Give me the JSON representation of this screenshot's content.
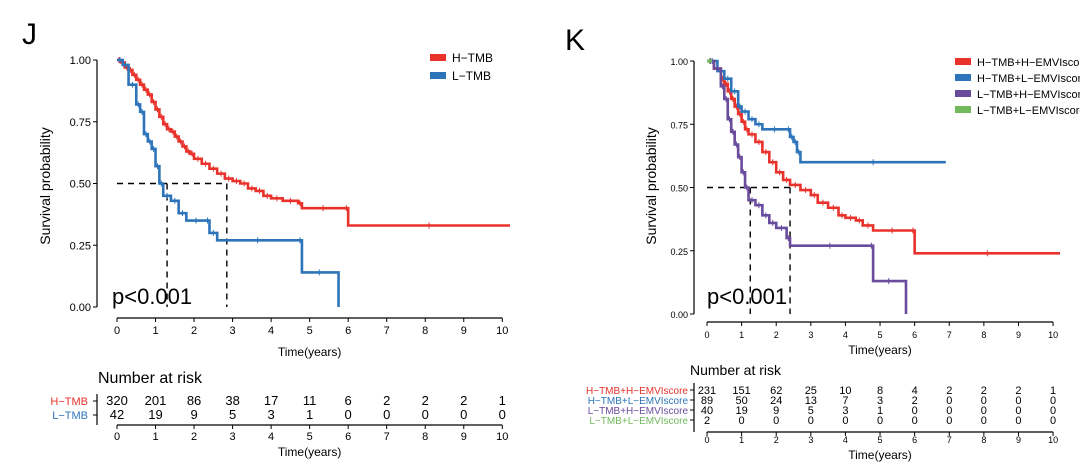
{
  "chart_data": [
    {
      "panel_label": "J",
      "type": "line",
      "subtype": "kaplan-meier",
      "ylabel": "Survival probability",
      "xlabel": "Time(years)",
      "x_ticks": [
        0,
        1,
        2,
        3,
        4,
        5,
        6,
        7,
        8,
        9,
        10
      ],
      "y_ticks": [
        "0.00",
        "0.25",
        "0.50",
        "0.75",
        "1.00"
      ],
      "xlim": [
        0,
        10.2
      ],
      "ylim": [
        0,
        1
      ],
      "pvalue": "p<0.001",
      "median_lines": {
        "y": 0.5,
        "x": [
          1.3,
          2.85
        ]
      },
      "series": [
        {
          "name": "H−TMB",
          "color": "#E8322B",
          "points": [
            [
              0,
              1
            ],
            [
              0.1,
              0.99
            ],
            [
              0.2,
              0.97
            ],
            [
              0.3,
              0.96
            ],
            [
              0.4,
              0.94
            ],
            [
              0.5,
              0.92
            ],
            [
              0.6,
              0.9
            ],
            [
              0.7,
              0.88
            ],
            [
              0.8,
              0.86
            ],
            [
              0.9,
              0.83
            ],
            [
              1.0,
              0.8
            ],
            [
              1.1,
              0.77
            ],
            [
              1.2,
              0.74
            ],
            [
              1.3,
              0.72
            ],
            [
              1.4,
              0.71
            ],
            [
              1.5,
              0.69
            ],
            [
              1.6,
              0.67
            ],
            [
              1.7,
              0.65
            ],
            [
              1.8,
              0.63
            ],
            [
              1.9,
              0.62
            ],
            [
              2.0,
              0.6
            ],
            [
              2.2,
              0.58
            ],
            [
              2.4,
              0.56
            ],
            [
              2.6,
              0.54
            ],
            [
              2.8,
              0.52
            ],
            [
              3.0,
              0.51
            ],
            [
              3.2,
              0.5
            ],
            [
              3.4,
              0.48
            ],
            [
              3.6,
              0.47
            ],
            [
              3.8,
              0.45
            ],
            [
              4.0,
              0.44
            ],
            [
              4.3,
              0.43
            ],
            [
              4.7,
              0.42
            ],
            [
              4.8,
              0.4
            ],
            [
              5.9,
              0.4
            ],
            [
              6.0,
              0.33
            ],
            [
              10.2,
              0.33
            ]
          ]
        },
        {
          "name": "L−TMB",
          "color": "#2D74BA",
          "points": [
            [
              0,
              1
            ],
            [
              0.15,
              0.98
            ],
            [
              0.3,
              0.9
            ],
            [
              0.5,
              0.82
            ],
            [
              0.6,
              0.79
            ],
            [
              0.7,
              0.7
            ],
            [
              0.8,
              0.67
            ],
            [
              0.9,
              0.64
            ],
            [
              1.0,
              0.57
            ],
            [
              1.1,
              0.5
            ],
            [
              1.2,
              0.45
            ],
            [
              1.4,
              0.43
            ],
            [
              1.6,
              0.38
            ],
            [
              1.8,
              0.35
            ],
            [
              2.3,
              0.35
            ],
            [
              2.4,
              0.3
            ],
            [
              2.6,
              0.27
            ],
            [
              4.7,
              0.27
            ],
            [
              4.8,
              0.14
            ],
            [
              5.7,
              0.14
            ],
            [
              5.75,
              0
            ]
          ]
        }
      ],
      "risk_table": {
        "title": "Number at risk",
        "xlabel": "Time(years)",
        "x_ticks": [
          0,
          1,
          2,
          3,
          4,
          5,
          6,
          7,
          8,
          9,
          10
        ],
        "rows": [
          {
            "name": "H−TMB",
            "color": "#E8322B",
            "values": [
              "320",
              "201",
              "86",
              "38",
              "17",
              "11",
              "6",
              "2",
              "2",
              "2",
              "1"
            ]
          },
          {
            "name": "L−TMB",
            "color": "#2D74BA",
            "values": [
              "42",
              "19",
              "9",
              "5",
              "3",
              "1",
              "0",
              "0",
              "0",
              "0",
              "0"
            ]
          }
        ]
      }
    },
    {
      "panel_label": "K",
      "type": "line",
      "subtype": "kaplan-meier",
      "ylabel": "Survival probability",
      "xlabel": "Time(years)",
      "x_ticks": [
        0,
        1,
        2,
        3,
        4,
        5,
        6,
        7,
        8,
        9,
        10
      ],
      "y_ticks": [
        "0.00",
        "0.25",
        "0.50",
        "0.75",
        "1.00"
      ],
      "xlim": [
        0,
        10.2
      ],
      "ylim": [
        0,
        1
      ],
      "pvalue": "p<0.001",
      "median_lines": {
        "y": 0.5,
        "x": [
          1.25,
          2.4
        ]
      },
      "series": [
        {
          "name": "H−TMB+H−EMVIscore",
          "color": "#E8322B",
          "points": [
            [
              0,
              1
            ],
            [
              0.2,
              0.97
            ],
            [
              0.4,
              0.93
            ],
            [
              0.5,
              0.91
            ],
            [
              0.6,
              0.88
            ],
            [
              0.7,
              0.85
            ],
            [
              0.8,
              0.82
            ],
            [
              0.9,
              0.79
            ],
            [
              1.0,
              0.76
            ],
            [
              1.1,
              0.73
            ],
            [
              1.2,
              0.71
            ],
            [
              1.4,
              0.68
            ],
            [
              1.6,
              0.64
            ],
            [
              1.8,
              0.6
            ],
            [
              2.0,
              0.56
            ],
            [
              2.2,
              0.53
            ],
            [
              2.4,
              0.51
            ],
            [
              2.7,
              0.49
            ],
            [
              3.0,
              0.47
            ],
            [
              3.2,
              0.44
            ],
            [
              3.5,
              0.42
            ],
            [
              3.8,
              0.39
            ],
            [
              4.0,
              0.38
            ],
            [
              4.3,
              0.37
            ],
            [
              4.5,
              0.35
            ],
            [
              4.8,
              0.33
            ],
            [
              5.9,
              0.33
            ],
            [
              6.0,
              0.24
            ],
            [
              10.2,
              0.24
            ]
          ]
        },
        {
          "name": "H−TMB+L−EMVIscore",
          "color": "#2D74BA",
          "points": [
            [
              0,
              1
            ],
            [
              0.3,
              0.96
            ],
            [
              0.5,
              0.93
            ],
            [
              0.7,
              0.88
            ],
            [
              0.9,
              0.82
            ],
            [
              1.0,
              0.8
            ],
            [
              1.2,
              0.77
            ],
            [
              1.4,
              0.75
            ],
            [
              1.6,
              0.73
            ],
            [
              2.3,
              0.73
            ],
            [
              2.4,
              0.7
            ],
            [
              2.5,
              0.68
            ],
            [
              2.6,
              0.64
            ],
            [
              2.7,
              0.6
            ],
            [
              6.9,
              0.6
            ]
          ]
        },
        {
          "name": "L−TMB+H−EMVIscore",
          "color": "#6A4C9C",
          "points": [
            [
              0,
              1
            ],
            [
              0.2,
              0.97
            ],
            [
              0.4,
              0.9
            ],
            [
              0.5,
              0.85
            ],
            [
              0.6,
              0.77
            ],
            [
              0.7,
              0.72
            ],
            [
              0.8,
              0.67
            ],
            [
              0.9,
              0.62
            ],
            [
              1.0,
              0.56
            ],
            [
              1.1,
              0.5
            ],
            [
              1.2,
              0.45
            ],
            [
              1.4,
              0.43
            ],
            [
              1.6,
              0.39
            ],
            [
              1.8,
              0.36
            ],
            [
              2.0,
              0.34
            ],
            [
              2.3,
              0.3
            ],
            [
              2.4,
              0.27
            ],
            [
              4.7,
              0.27
            ],
            [
              4.8,
              0.13
            ],
            [
              5.7,
              0.13
            ],
            [
              5.75,
              0
            ]
          ]
        },
        {
          "name": "L−TMB+L−EMVIscore",
          "color": "#72B95E",
          "points": [
            [
              0,
              1
            ],
            [
              0.15,
              1
            ]
          ]
        }
      ],
      "risk_table": {
        "title": "Number at risk",
        "xlabel": "Time(years)",
        "x_ticks": [
          0,
          1,
          2,
          3,
          4,
          5,
          6,
          7,
          8,
          9,
          10
        ],
        "rows": [
          {
            "name": "H−TMB+H−EMVIscore",
            "color": "#E8322B",
            "values": [
              "231",
              "151",
              "62",
              "25",
              "10",
              "8",
              "4",
              "2",
              "2",
              "2",
              "1"
            ]
          },
          {
            "name": "H−TMB+L−EMVIscore",
            "color": "#2D74BA",
            "values": [
              "89",
              "50",
              "24",
              "13",
              "7",
              "3",
              "2",
              "0",
              "0",
              "0",
              "0"
            ]
          },
          {
            "name": "L−TMB+H−EMVIscore",
            "color": "#6A4C9C",
            "values": [
              "40",
              "19",
              "9",
              "5",
              "3",
              "1",
              "0",
              "0",
              "0",
              "0",
              "0"
            ]
          },
          {
            "name": "L−TMB+L−EMVIscore",
            "color": "#72B95E",
            "values": [
              "2",
              "0",
              "0",
              "0",
              "0",
              "0",
              "0",
              "0",
              "0",
              "0",
              "0"
            ]
          }
        ]
      }
    }
  ]
}
